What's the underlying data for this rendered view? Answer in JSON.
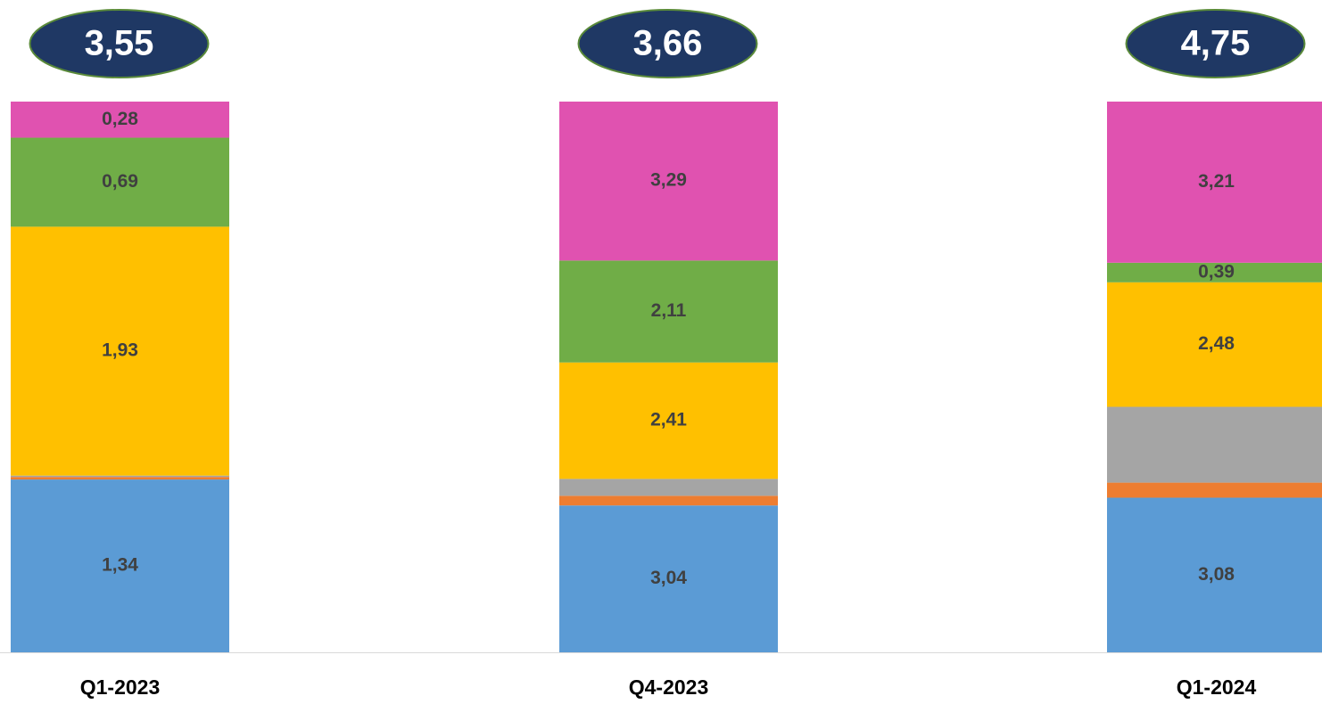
{
  "chart_data": {
    "type": "bar",
    "stacking": "percent",
    "categories": [
      "Q1-2023",
      "Q4-2023",
      "Q1-2024"
    ],
    "series": [
      {
        "color": "#5b9bd5",
        "values": [
          1.34,
          3.04,
          3.08
        ],
        "value_labels": [
          "1,34",
          "3,04",
          "3,08"
        ]
      },
      {
        "color": "#ed7d31",
        "values": [
          0.02,
          0.2,
          0.3
        ],
        "value_labels": [
          null,
          null,
          null
        ]
      },
      {
        "color": "#a5a5a5",
        "values": [
          0.01,
          0.35,
          1.51
        ],
        "value_labels": [
          null,
          null,
          null
        ]
      },
      {
        "color": "#ffc000",
        "values": [
          1.93,
          2.41,
          2.48
        ],
        "value_labels": [
          "1,93",
          "2,41",
          "2,48"
        ]
      },
      {
        "color": "#70ad47",
        "values": [
          0.69,
          2.11,
          0.39
        ],
        "value_labels": [
          "0,69",
          "2,11",
          "0,39"
        ]
      },
      {
        "color": "#e052b0",
        "values": [
          0.28,
          3.29,
          3.21
        ],
        "value_labels": [
          "0,28",
          "3,29",
          "3,21"
        ]
      }
    ],
    "totals": {
      "values": [
        3.55,
        3.66,
        4.75
      ],
      "labels": [
        "3,55",
        "3,66",
        "4,75"
      ],
      "color": "#1f3864"
    }
  }
}
